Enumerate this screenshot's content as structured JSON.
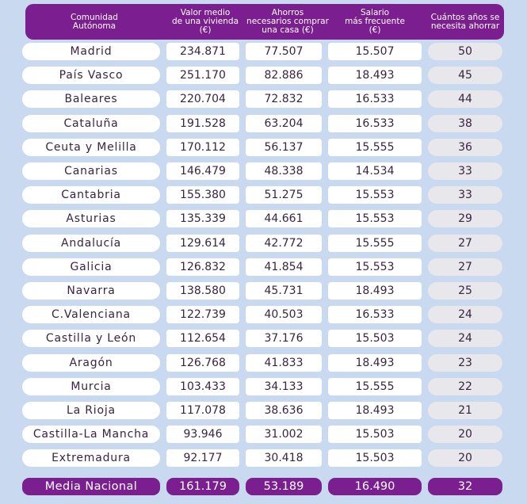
{
  "chart_data": {
    "type": "table",
    "columns": [
      "Comunidad\nAutónoma",
      "Valor medio\nde una vivienda\n(€)",
      "Ahorros\nnecesarios comprar\nuna casa (€)",
      "Salario\nmás frecuente\n(€)",
      "Cuántos años se\nnecesita ahorrar"
    ],
    "rows": [
      [
        "Madrid",
        "234.871",
        "77.507",
        "15.507",
        "50"
      ],
      [
        "País Vasco",
        "251.170",
        "82.886",
        "18.493",
        "45"
      ],
      [
        "Baleares",
        "220.704",
        "72.832",
        "16.533",
        "44"
      ],
      [
        "Cataluña",
        "191.528",
        "63.204",
        "16.533",
        "38"
      ],
      [
        "Ceuta y Melilla",
        "170.112",
        "56.137",
        "15.555",
        "36"
      ],
      [
        "Canarias",
        "146.479",
        "48.338",
        "14.534",
        "33"
      ],
      [
        "Cantabria",
        "155.380",
        "51.275",
        "15.553",
        "33"
      ],
      [
        "Asturias",
        "135.339",
        "44.661",
        "15.553",
        "29"
      ],
      [
        "Andalucía",
        "129.614",
        "42.772",
        "15.555",
        "27"
      ],
      [
        "Galicia",
        "126.832",
        "41.854",
        "15.553",
        "27"
      ],
      [
        "Navarra",
        "138.580",
        "45.731",
        "18.493",
        "25"
      ],
      [
        "C.Valenciana",
        "122.739",
        "40.503",
        "16.533",
        "24"
      ],
      [
        "Castilla y León",
        "112.654",
        "37.176",
        "15.503",
        "24"
      ],
      [
        "Aragón",
        "126.768",
        "41.833",
        "18.493",
        "23"
      ],
      [
        "Murcia",
        "103.433",
        "34.133",
        "15.555",
        "22"
      ],
      [
        "La Rioja",
        "117.078",
        "38.636",
        "18.493",
        "21"
      ],
      [
        "Castilla-La Mancha",
        "93.946",
        "31.002",
        "15.503",
        "20"
      ],
      [
        "Extremadura",
        "92.177",
        "30.418",
        "15.503",
        "20"
      ]
    ],
    "footer": [
      "Media Nacional",
      "161.179",
      "53.189",
      "16.490",
      "32"
    ],
    "colors": {
      "header_bg": "#7b1e8f",
      "background": "#c9daf0",
      "cell_bg": "#ffffff",
      "years_bg": "#e7e7ec"
    }
  }
}
